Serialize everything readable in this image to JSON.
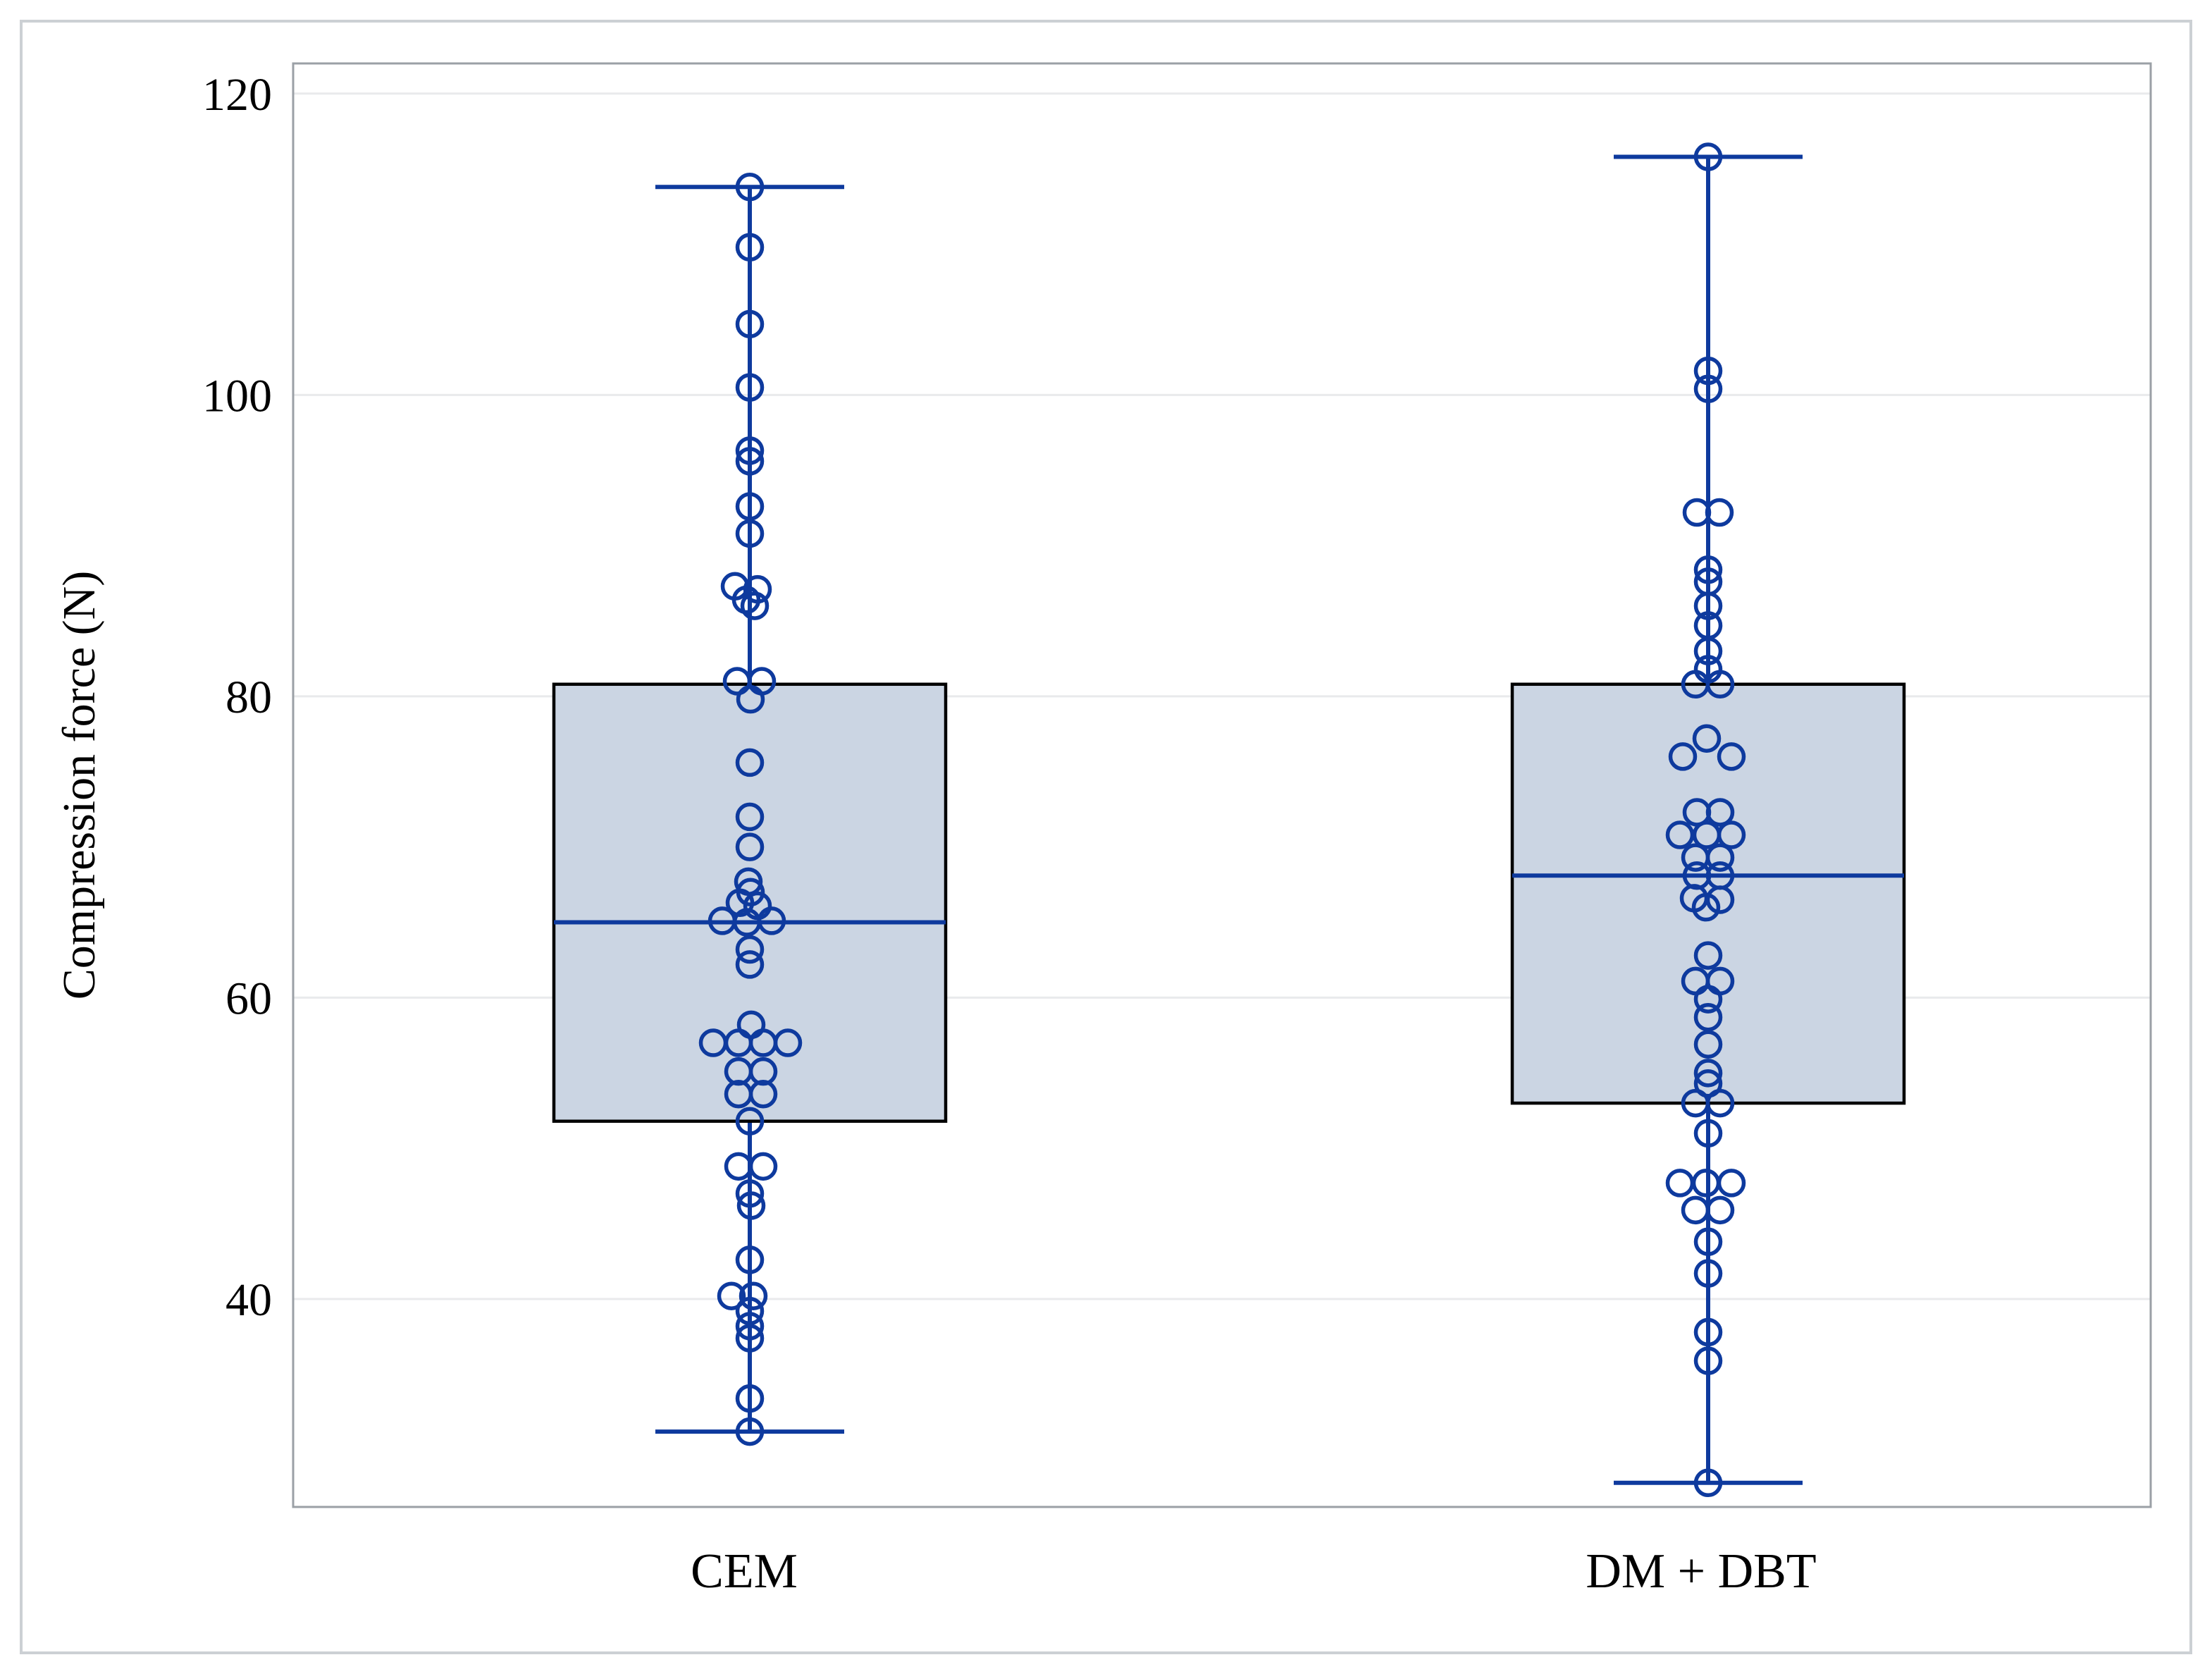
{
  "figure": {
    "background": "#ffffff",
    "outer_border_color": "#ccd0d4",
    "plot_border_color": "#9ba0a6",
    "grid_color": "#e9eaec",
    "text_color": "#000000"
  },
  "chart_data": {
    "type": "boxplot",
    "title": "",
    "xlabel": "",
    "ylabel": "Compression force (N)",
    "categories": [
      "CEM",
      "DM + DBT"
    ],
    "legend": "none",
    "y_axis": {
      "ticks": [
        40,
        60,
        80,
        100,
        120
      ],
      "range_top": 122.0,
      "range_bottom": 26.2,
      "grid": true
    },
    "colors": {
      "line_blue": "#0e3a9e",
      "box_fill": "#cbd5e3",
      "box_border": "#000000"
    },
    "series": [
      {
        "name": "CEM",
        "stats": {
          "q1": 51.8,
          "median": 65.0,
          "q3": 80.8,
          "whisker_low": 31.2,
          "whisker_high": 113.8
        },
        "points": [
          [
            113.8,
            0
          ],
          [
            109.8,
            0
          ],
          [
            104.7,
            0
          ],
          [
            100.5,
            0
          ],
          [
            96.3,
            0
          ],
          [
            95.6,
            0
          ],
          [
            92.6,
            0
          ],
          [
            90.8,
            0
          ],
          [
            87.3,
            -21
          ],
          [
            87.1,
            11
          ],
          [
            86.4,
            -5
          ],
          [
            86.0,
            7
          ],
          [
            81.0,
            -18
          ],
          [
            81.0,
            17
          ],
          [
            79.8,
            1
          ],
          [
            75.6,
            0
          ],
          [
            72.0,
            0
          ],
          [
            70.0,
            0
          ],
          [
            67.7,
            -2
          ],
          [
            67.0,
            1
          ],
          [
            66.3,
            -14
          ],
          [
            66.1,
            11
          ],
          [
            65.1,
            -39
          ],
          [
            65.0,
            -4
          ],
          [
            65.1,
            31
          ],
          [
            63.2,
            0
          ],
          [
            62.2,
            0
          ],
          [
            58.2,
            2
          ],
          [
            57.0,
            -52
          ],
          [
            57.0,
            -16
          ],
          [
            57.0,
            19
          ],
          [
            57.0,
            54
          ],
          [
            55.1,
            -16
          ],
          [
            55.1,
            19
          ],
          [
            53.6,
            -16
          ],
          [
            53.6,
            19
          ],
          [
            51.8,
            0
          ],
          [
            48.8,
            -16
          ],
          [
            48.8,
            19
          ],
          [
            47.0,
            0
          ],
          [
            46.2,
            2
          ],
          [
            42.6,
            0
          ],
          [
            40.2,
            -26
          ],
          [
            40.2,
            5
          ],
          [
            39.2,
            0
          ],
          [
            38.2,
            0
          ],
          [
            37.4,
            0
          ],
          [
            33.4,
            0
          ],
          [
            31.2,
            0
          ]
        ]
      },
      {
        "name": "DM + DBT",
        "stats": {
          "q1": 53.0,
          "median": 68.1,
          "q3": 80.8,
          "whisker_low": 27.8,
          "whisker_high": 115.8
        },
        "points": [
          [
            115.8,
            0
          ],
          [
            101.6,
            0
          ],
          [
            100.4,
            0
          ],
          [
            92.2,
            -16
          ],
          [
            92.2,
            16
          ],
          [
            88.4,
            0
          ],
          [
            87.6,
            0
          ],
          [
            86.0,
            0
          ],
          [
            84.7,
            0
          ],
          [
            83.0,
            0
          ],
          [
            81.8,
            0
          ],
          [
            80.8,
            -18
          ],
          [
            80.8,
            17
          ],
          [
            77.2,
            -2
          ],
          [
            76.0,
            -36
          ],
          [
            76.0,
            33
          ],
          [
            72.3,
            -16
          ],
          [
            72.3,
            17
          ],
          [
            70.8,
            -40
          ],
          [
            70.8,
            -2
          ],
          [
            70.8,
            33
          ],
          [
            69.3,
            -18
          ],
          [
            69.3,
            17
          ],
          [
            68.1,
            -16
          ],
          [
            68.1,
            17
          ],
          [
            66.6,
            -20
          ],
          [
            66.5,
            17
          ],
          [
            66.0,
            -3
          ],
          [
            62.8,
            0
          ],
          [
            61.1,
            -18
          ],
          [
            61.1,
            17
          ],
          [
            59.9,
            0
          ],
          [
            58.7,
            0
          ],
          [
            56.9,
            0
          ],
          [
            55.0,
            0
          ],
          [
            54.3,
            0
          ],
          [
            53.0,
            -18
          ],
          [
            53.0,
            17
          ],
          [
            51.0,
            0
          ],
          [
            47.7,
            -40
          ],
          [
            47.7,
            -3
          ],
          [
            47.7,
            33
          ],
          [
            45.9,
            -18
          ],
          [
            45.9,
            17
          ],
          [
            43.8,
            0
          ],
          [
            41.7,
            0
          ],
          [
            37.8,
            0
          ],
          [
            35.9,
            0
          ],
          [
            27.8,
            0
          ]
        ]
      }
    ]
  }
}
